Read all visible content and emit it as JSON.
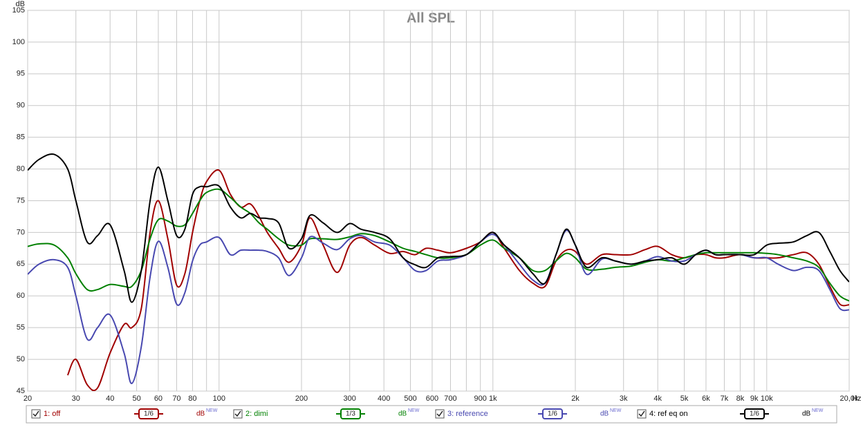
{
  "chart_data": {
    "type": "line",
    "title": "All SPL",
    "ylabel": "dB",
    "xlabel": "Hz",
    "log_x": true,
    "grid": true,
    "xlim": [
      20,
      20000
    ],
    "ylim": [
      45,
      105
    ],
    "yticks": [
      45,
      50,
      55,
      60,
      65,
      70,
      75,
      80,
      85,
      90,
      95,
      100,
      105
    ],
    "xticks": [
      20,
      30,
      40,
      50,
      60,
      70,
      80,
      100,
      200,
      300,
      400,
      500,
      600,
      700,
      900,
      {
        "value": 1000,
        "label": "1k"
      },
      {
        "value": 2000,
        "label": "2k"
      },
      {
        "value": 3000,
        "label": "3k"
      },
      {
        "value": 4000,
        "label": "4k"
      },
      {
        "value": 5000,
        "label": "5k"
      },
      {
        "value": 6000,
        "label": "6k"
      },
      {
        "value": 7000,
        "label": "7k"
      },
      {
        "value": 8000,
        "label": "8k"
      },
      {
        "value": 9000,
        "label": "9k"
      },
      {
        "value": 10000,
        "label": "10k"
      },
      {
        "value": 20000,
        "label": "20,0k"
      }
    ],
    "xminor": [
      90,
      800
    ],
    "legend_unit": "dB",
    "legend_badge": "NEW",
    "x": [
      20,
      22,
      25,
      28,
      30,
      33,
      36,
      40,
      45,
      48,
      52,
      56,
      60,
      65,
      70,
      75,
      80,
      85,
      90,
      100,
      110,
      120,
      130,
      140,
      150,
      165,
      180,
      200,
      215,
      240,
      270,
      300,
      330,
      370,
      420,
      470,
      520,
      570,
      630,
      700,
      800,
      900,
      1000,
      1100,
      1250,
      1400,
      1550,
      1700,
      1850,
      2000,
      2200,
      2500,
      2800,
      3200,
      3600,
      4000,
      4500,
      5000,
      5500,
      6000,
      6500,
      7000,
      8000,
      9000,
      10000,
      11000,
      12500,
      14000,
      15500,
      17000,
      18500,
      20000
    ],
    "series": [
      {
        "name": "1: off",
        "smoothing": "1/6",
        "color": "#a00000",
        "values": [
          null,
          null,
          null,
          47.5,
          50,
          46,
          45.5,
          51,
          55.5,
          55,
          58,
          70,
          75,
          69,
          61.7,
          63.5,
          70,
          75,
          78,
          79.8,
          76,
          74,
          74.5,
          72.5,
          70,
          67.5,
          65.3,
          68,
          72.3,
          68,
          63.7,
          68,
          69.2,
          68,
          66.7,
          67,
          66.5,
          67.5,
          67.2,
          66.8,
          67.5,
          68.5,
          70,
          67.5,
          64,
          62,
          61.5,
          65.5,
          67.2,
          67,
          65,
          66.5,
          66.5,
          66.5,
          67.3,
          67.8,
          66.5,
          66,
          66.5,
          66.5,
          66,
          66,
          66.5,
          66,
          66,
          66,
          66.5,
          66.8,
          65,
          61.5,
          58.7,
          58.6
        ]
      },
      {
        "name": "2: dimi",
        "smoothing": "1/3",
        "color": "#008000",
        "values": [
          67.8,
          68.2,
          68,
          66,
          63.5,
          61,
          61,
          61.8,
          61.5,
          61.5,
          64,
          69,
          72,
          71.8,
          71,
          71.2,
          73,
          75,
          76.3,
          76.8,
          75.5,
          74,
          73,
          71.5,
          70.5,
          69,
          68,
          68,
          69,
          69,
          68.9,
          69.3,
          69.8,
          69.5,
          68.5,
          67.5,
          67,
          66.5,
          66,
          66,
          66.5,
          68,
          68.8,
          67.5,
          66,
          64,
          64,
          65.5,
          66.7,
          66,
          64.2,
          64.2,
          64.5,
          64.7,
          65.3,
          65.7,
          65.5,
          66,
          66.5,
          66.8,
          66.8,
          66.8,
          66.8,
          66.8,
          66.7,
          66.5,
          66,
          65.5,
          64.5,
          62,
          60,
          59.2
        ]
      },
      {
        "name": "3: reference",
        "smoothing": "1/6",
        "color": "#4848b0",
        "values": [
          63.4,
          65,
          65.7,
          64.5,
          60,
          53.2,
          55,
          57,
          51,
          46.2,
          52,
          63,
          68.6,
          64.5,
          58.7,
          60.5,
          65.5,
          68,
          68.5,
          69.2,
          66.5,
          67.2,
          67.2,
          67.2,
          67,
          66,
          63.2,
          66,
          69.3,
          68.3,
          67.3,
          69,
          69.5,
          68.5,
          68,
          66,
          64,
          64,
          65.5,
          65.7,
          66.5,
          68.5,
          69.7,
          68,
          65,
          62.5,
          62,
          66.5,
          70.3,
          68,
          63.4,
          65.8,
          65.5,
          65,
          65.5,
          66.2,
          65.5,
          65.5,
          66.5,
          67.2,
          66.5,
          66.5,
          66.5,
          66,
          66,
          65,
          64,
          64.5,
          64,
          61,
          58,
          57.8
        ]
      },
      {
        "name": "4: ref eq on",
        "smoothing": "1/6",
        "color": "#000000",
        "values": [
          79.8,
          81.5,
          82.3,
          80,
          75,
          68.5,
          69.5,
          71.2,
          64,
          59,
          64,
          75,
          80.3,
          75,
          69.5,
          70.5,
          76,
          77.2,
          77.2,
          77.3,
          74,
          72.3,
          73,
          72.3,
          72.2,
          71.5,
          67.5,
          69,
          72.7,
          71.5,
          70,
          71.4,
          70.5,
          70,
          69,
          66,
          64.9,
          64.5,
          66,
          66.2,
          66.5,
          68.5,
          70,
          68,
          66,
          63.5,
          62,
          66.5,
          70.5,
          68,
          64.5,
          66,
          65.5,
          65,
          65.5,
          65.7,
          66,
          65,
          66.5,
          67.2,
          66.5,
          66.5,
          66.5,
          66.5,
          68,
          68.3,
          68.5,
          69.5,
          70,
          67,
          64,
          62.2
        ]
      }
    ]
  }
}
